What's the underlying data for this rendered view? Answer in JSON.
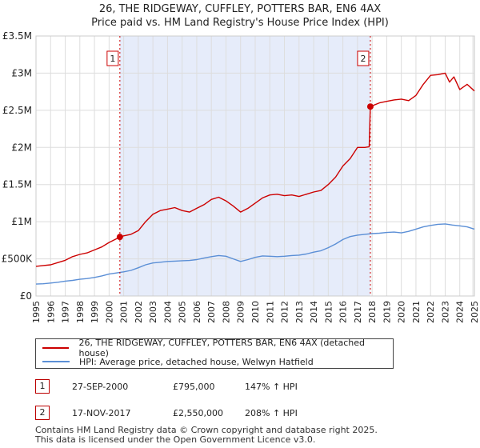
{
  "chart_data": {
    "type": "line",
    "title": "26, THE RIDGEWAY, CUFFLEY, POTTERS BAR, EN6 4AX",
    "subtitle": "Price paid vs. HM Land Registry's House Price Index (HPI)",
    "xlabel": "",
    "ylabel": "",
    "xlim": [
      1995,
      2025
    ],
    "ylim": [
      0,
      3500000
    ],
    "x_ticks": [
      "1995",
      "1996",
      "1997",
      "1998",
      "1999",
      "2000",
      "2001",
      "2002",
      "2003",
      "2004",
      "2005",
      "2006",
      "2007",
      "2008",
      "2009",
      "2010",
      "2011",
      "2012",
      "2013",
      "2014",
      "2015",
      "2016",
      "2017",
      "2018",
      "2019",
      "2020",
      "2021",
      "2022",
      "2023",
      "2024",
      "2025"
    ],
    "y_ticks": [
      {
        "value": 0,
        "label": "£0"
      },
      {
        "value": 500000,
        "label": "£500K"
      },
      {
        "value": 1000000,
        "label": "£1M"
      },
      {
        "value": 1500000,
        "label": "£1.5M"
      },
      {
        "value": 2000000,
        "label": "£2M"
      },
      {
        "value": 2500000,
        "label": "£2.5M"
      },
      {
        "value": 3000000,
        "label": "£3M"
      },
      {
        "value": 3500000,
        "label": "£3.5M"
      }
    ],
    "grid": true,
    "series": [
      {
        "name": "26, THE RIDGEWAY, CUFFLEY, POTTERS BAR, EN6 4AX (detached house)",
        "color": "#cc0000",
        "x": [
          1995.0,
          1995.5,
          1996.0,
          1996.5,
          1997.0,
          1997.5,
          1998.0,
          1998.5,
          1999.0,
          1999.5,
          2000.0,
          2000.5,
          2000.74,
          2001.0,
          2001.5,
          2002.0,
          2002.5,
          2003.0,
          2003.5,
          2004.0,
          2004.5,
          2005.0,
          2005.5,
          2006.0,
          2006.5,
          2007.0,
          2007.5,
          2008.0,
          2008.5,
          2009.0,
          2009.5,
          2010.0,
          2010.5,
          2011.0,
          2011.5,
          2012.0,
          2012.5,
          2013.0,
          2013.5,
          2014.0,
          2014.5,
          2015.0,
          2015.5,
          2016.0,
          2016.5,
          2017.0,
          2017.5,
          2017.8,
          2017.88,
          2018.0,
          2018.5,
          2019.0,
          2019.5,
          2020.0,
          2020.5,
          2021.0,
          2021.5,
          2022.0,
          2022.5,
          2023.0,
          2023.3,
          2023.6,
          2024.0,
          2024.5,
          2025.0
        ],
        "values": [
          400000,
          410000,
          420000,
          450000,
          480000,
          530000,
          560000,
          580000,
          620000,
          660000,
          720000,
          770000,
          795000,
          810000,
          830000,
          880000,
          1000000,
          1100000,
          1150000,
          1170000,
          1190000,
          1150000,
          1130000,
          1180000,
          1230000,
          1300000,
          1330000,
          1280000,
          1210000,
          1130000,
          1180000,
          1250000,
          1320000,
          1360000,
          1370000,
          1350000,
          1360000,
          1340000,
          1370000,
          1400000,
          1420000,
          1500000,
          1600000,
          1750000,
          1850000,
          2000000,
          2000000,
          2010000,
          2550000,
          2560000,
          2600000,
          2620000,
          2640000,
          2650000,
          2630000,
          2700000,
          2850000,
          2970000,
          2980000,
          3000000,
          2880000,
          2950000,
          2780000,
          2850000,
          2760000
        ]
      },
      {
        "name": "HPI: Average price, detached house, Welwyn Hatfield",
        "color": "#5b8fd6",
        "x": [
          1995.0,
          1995.5,
          1996.0,
          1996.5,
          1997.0,
          1997.5,
          1998.0,
          1998.5,
          1999.0,
          1999.5,
          2000.0,
          2000.5,
          2001.0,
          2001.5,
          2002.0,
          2002.5,
          2003.0,
          2003.5,
          2004.0,
          2004.5,
          2005.0,
          2005.5,
          2006.0,
          2006.5,
          2007.0,
          2007.5,
          2008.0,
          2008.5,
          2009.0,
          2009.5,
          2010.0,
          2010.5,
          2011.0,
          2011.5,
          2012.0,
          2012.5,
          2013.0,
          2013.5,
          2014.0,
          2014.5,
          2015.0,
          2015.5,
          2016.0,
          2016.5,
          2017.0,
          2017.5,
          2018.0,
          2018.5,
          2019.0,
          2019.5,
          2020.0,
          2020.5,
          2021.0,
          2021.5,
          2022.0,
          2022.5,
          2023.0,
          2023.5,
          2024.0,
          2024.5,
          2025.0
        ],
        "values": [
          160000,
          165000,
          175000,
          185000,
          200000,
          210000,
          225000,
          235000,
          250000,
          270000,
          295000,
          310000,
          325000,
          345000,
          380000,
          420000,
          445000,
          455000,
          465000,
          470000,
          475000,
          478000,
          490000,
          510000,
          530000,
          545000,
          535000,
          500000,
          465000,
          490000,
          520000,
          540000,
          535000,
          530000,
          535000,
          545000,
          550000,
          565000,
          590000,
          610000,
          650000,
          700000,
          760000,
          800000,
          820000,
          830000,
          840000,
          845000,
          855000,
          860000,
          850000,
          870000,
          900000,
          930000,
          950000,
          965000,
          970000,
          955000,
          945000,
          930000,
          900000
        ]
      }
    ],
    "annotations": [
      {
        "id": "1",
        "x": 2000.74,
        "value": 795000
      },
      {
        "id": "2",
        "x": 2017.88,
        "value": 2550000
      }
    ]
  },
  "legend": {
    "property_label": "26, THE RIDGEWAY, CUFFLEY, POTTERS BAR, EN6 4AX (detached house)",
    "hpi_label": "HPI: Average price, detached house, Welwyn Hatfield",
    "property_color": "#cc0000",
    "hpi_color": "#5b8fd6"
  },
  "sales": [
    {
      "id": "1",
      "date": "27-SEP-2000",
      "price": "£795,000",
      "hpi": "147% ↑ HPI"
    },
    {
      "id": "2",
      "date": "17-NOV-2017",
      "price": "£2,550,000",
      "hpi": "208% ↑ HPI"
    }
  ],
  "footer": {
    "line1": "Contains HM Land Registry data © Crown copyright and database right 2025.",
    "line2": "This data is licensed under the Open Government Licence v3.0."
  }
}
